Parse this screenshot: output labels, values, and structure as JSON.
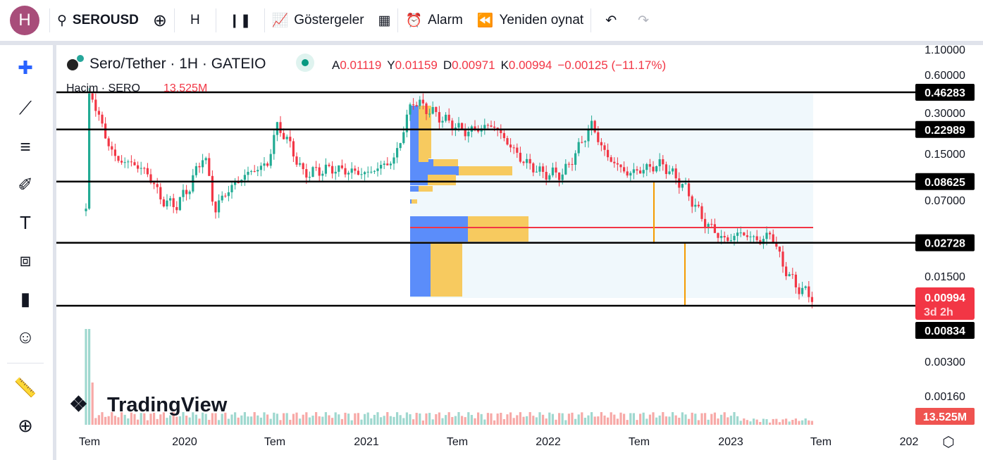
{
  "toolbar": {
    "avatar": "H",
    "symbol": "SEROUSD",
    "interval": "H",
    "indicators": "Göstergeler",
    "alert": "Alarm",
    "replay": "Yeniden oynat"
  },
  "legend": {
    "title": "Sero/Tether · 1H · GATEIO",
    "o_label": "A",
    "o": "0.01119",
    "h_label": "Y",
    "h": "0.01159",
    "l_label": "D",
    "l": "0.00971",
    "c_label": "K",
    "c": "0.00994",
    "change": "−0.00125 (−11.17%)",
    "volume_label": "Hacim · SERO",
    "volume_value": "13.525M"
  },
  "price_axis": {
    "ticks": [
      "1.10000",
      "0.60000",
      "0.30000",
      "0.15000",
      "0.07000",
      "0.01500",
      "0.00300",
      "0.00160"
    ],
    "levels": [
      "0.46283",
      "0.22989",
      "0.08625",
      "0.02728",
      "0.00834"
    ],
    "last_price": "0.00994",
    "countdown": "3d 2h",
    "volume_badge": "13.525M"
  },
  "time_axis": {
    "ticks": [
      "Tem",
      "2020",
      "Tem",
      "2021",
      "Tem",
      "2022",
      "Tem",
      "2023",
      "Tem",
      "202"
    ]
  },
  "watermark": "TradingView",
  "colors": {
    "up": "#22ab94",
    "down": "#f23645",
    "level": "#000000",
    "poc": "#f23645",
    "profile_up": "#5b8dfa",
    "profile_down": "#f7ca5f",
    "vertical": "#f59b00"
  },
  "chart_data": {
    "type": "candlestick",
    "scale": "log",
    "price_path": [
      [
        "2019-06-24",
        0.05
      ],
      [
        "2019-07-01",
        0.5
      ],
      [
        "2019-08-02",
        0.2
      ],
      [
        "2019-08-23",
        0.13
      ],
      [
        "2019-09-28",
        0.12
      ],
      [
        "2019-10-26",
        0.1
      ],
      [
        "2019-11-23",
        0.06
      ],
      [
        "2019-12-21",
        0.055
      ],
      [
        "2020-01-18",
        0.08
      ],
      [
        "2020-02-15",
        0.15
      ],
      [
        "2020-03-07",
        0.05
      ],
      [
        "2020-03-29",
        0.07
      ],
      [
        "2020-05-10",
        0.1
      ],
      [
        "2020-06-21",
        0.12
      ],
      [
        "2020-07-09",
        0.25
      ],
      [
        "2020-08-02",
        0.18
      ],
      [
        "2020-08-30",
        0.1
      ],
      [
        "2020-10-26",
        0.11
      ],
      [
        "2021-01-04",
        0.1
      ],
      [
        "2021-03-01",
        0.13
      ],
      [
        "2021-04-06",
        0.4
      ],
      [
        "2021-05-25",
        0.3
      ],
      [
        "2021-07-20",
        0.22
      ],
      [
        "2021-09-14",
        0.25
      ],
      [
        "2021-11-10",
        0.13
      ],
      [
        "2021-12-22",
        0.1
      ],
      [
        "2022-02-02",
        0.1
      ],
      [
        "2022-03-30",
        0.25
      ],
      [
        "2022-04-28",
        0.14
      ],
      [
        "2022-06-09",
        0.1
      ],
      [
        "2022-08-18",
        0.12
      ],
      [
        "2022-09-29",
        0.08
      ],
      [
        "2022-11-11",
        0.04
      ],
      [
        "2022-12-23",
        0.028
      ],
      [
        "2023-01-20",
        0.033
      ],
      [
        "2023-03-03",
        0.028
      ],
      [
        "2023-03-24",
        0.033
      ],
      [
        "2023-04-15",
        0.018
      ],
      [
        "2023-05-13",
        0.012
      ],
      [
        "2023-06-13",
        0.00994
      ]
    ]
  }
}
